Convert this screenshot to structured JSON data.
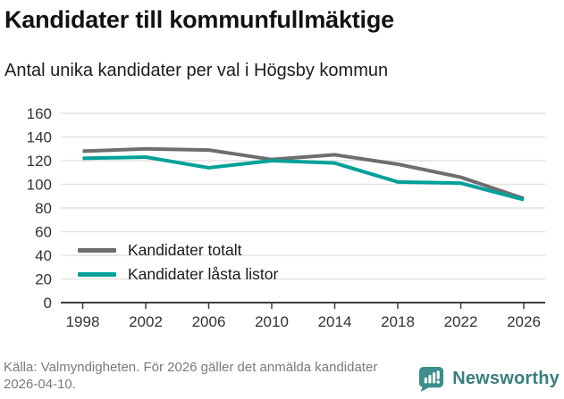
{
  "header": {
    "title": "Kandidater till kommunfullmäktige",
    "subtitle": "Antal unika kandidater per val i Högsby kommun"
  },
  "chart_data": {
    "type": "line",
    "title": "Kandidater till kommunfullmäktige",
    "subtitle": "Antal unika kandidater per val i Högsby kommun",
    "x": [
      1998,
      2002,
      2006,
      2010,
      2014,
      2018,
      2022,
      2026
    ],
    "series": [
      {
        "name": "Kandidater totalt",
        "color": "#6e6e6e",
        "values": [
          128,
          130,
          129,
          121,
          125,
          117,
          106,
          88
        ]
      },
      {
        "name": "Kandidater låsta listor",
        "color": "#00a199",
        "values": [
          122,
          123,
          114,
          120,
          118,
          102,
          101,
          87
        ]
      }
    ],
    "xlabel": "",
    "ylabel": "",
    "ylim": [
      0,
      160
    ],
    "yticks": [
      0,
      20,
      40,
      60,
      80,
      100,
      120,
      140,
      160
    ],
    "grid": "horizontal-light",
    "legend_position": "inside-lower-left"
  },
  "colors": {
    "grid": "#e2e2e2",
    "axis": "#3d3d3d",
    "tick_text": "#333333"
  },
  "footer": {
    "source": "Källa: Valmyndigheten. För 2026 gäller det anmälda kandidater 2026-04-10."
  },
  "logo": {
    "text": "Newsworthy",
    "icon": "newsworthy-bar-chart-bubble-icon",
    "icon_color": "#3d8f8b",
    "text_color": "#377f7e"
  }
}
